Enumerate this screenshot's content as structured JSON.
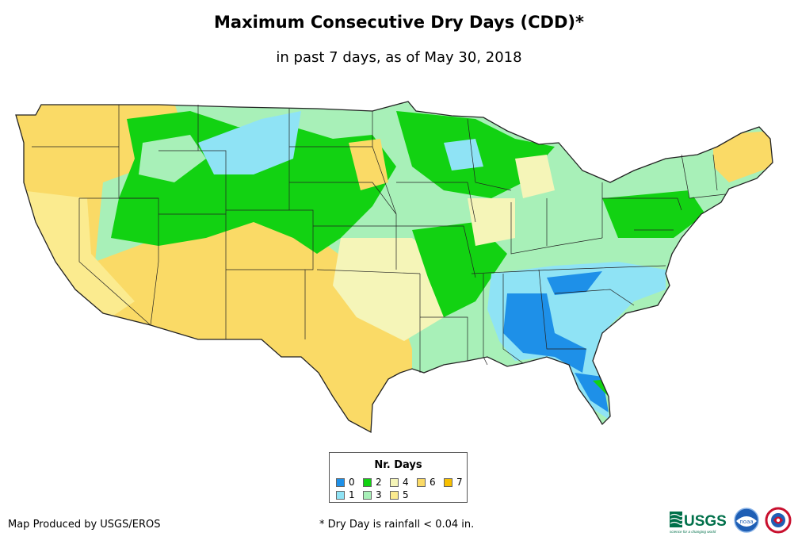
{
  "title": "Maximum Consecutive Dry Days (CDD)*",
  "subtitle": "in past 7 days, as of May 30, 2018",
  "legend": {
    "title": "Nr. Days",
    "items": [
      {
        "label": "0",
        "color": "#1e90e8"
      },
      {
        "label": "1",
        "color": "#8fe3f5"
      },
      {
        "label": "2",
        "color": "#12d212"
      },
      {
        "label": "3",
        "color": "#a8f0b8"
      },
      {
        "label": "4",
        "color": "#f5f5b8"
      },
      {
        "label": "5",
        "color": "#fbeb8f"
      },
      {
        "label": "6",
        "color": "#fada66"
      },
      {
        "label": "7",
        "color": "#f8c000"
      }
    ]
  },
  "credit": "Map Produced by USGS/EROS",
  "footnote": "* Dry Day is rainfall < 0.04 in.",
  "logos": {
    "usgs": "USGS",
    "usgs_tagline": "science for a changing world",
    "noaa": "noaa"
  }
}
